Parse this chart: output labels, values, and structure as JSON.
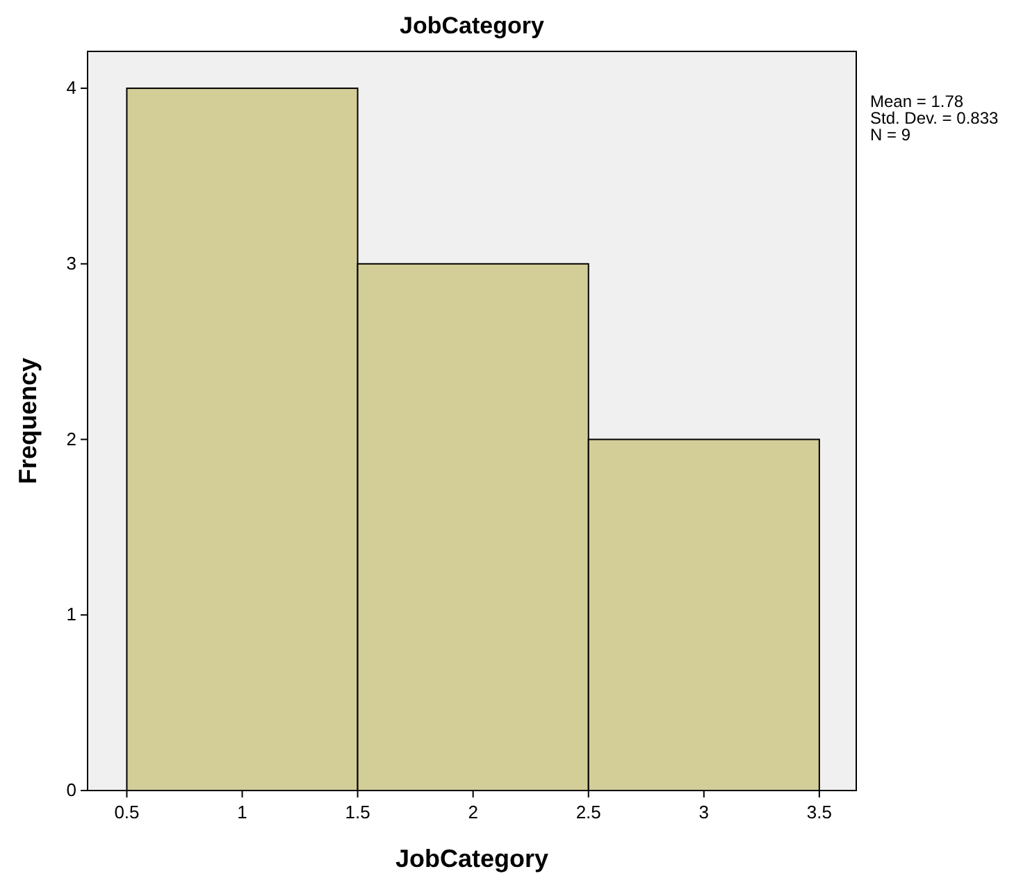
{
  "chart_data": {
    "type": "histogram",
    "title": "JobCategory",
    "xlabel": "JobCategory",
    "ylabel": "Frequency",
    "bins": [
      0.5,
      1.5,
      2.5,
      3.5
    ],
    "values": [
      4,
      3,
      2
    ],
    "color": "#d3cd98",
    "xlim": [
      0.33,
      3.66
    ],
    "xticks": [
      0.5,
      1,
      1.5,
      2,
      2.5,
      3,
      3.5
    ],
    "ylim": [
      0,
      4.21
    ],
    "yticks": [
      0,
      1,
      2,
      3,
      4
    ],
    "annotations": [
      "Mean = 1.78",
      "Std. Dev. = 0.833",
      "N = 9"
    ]
  }
}
